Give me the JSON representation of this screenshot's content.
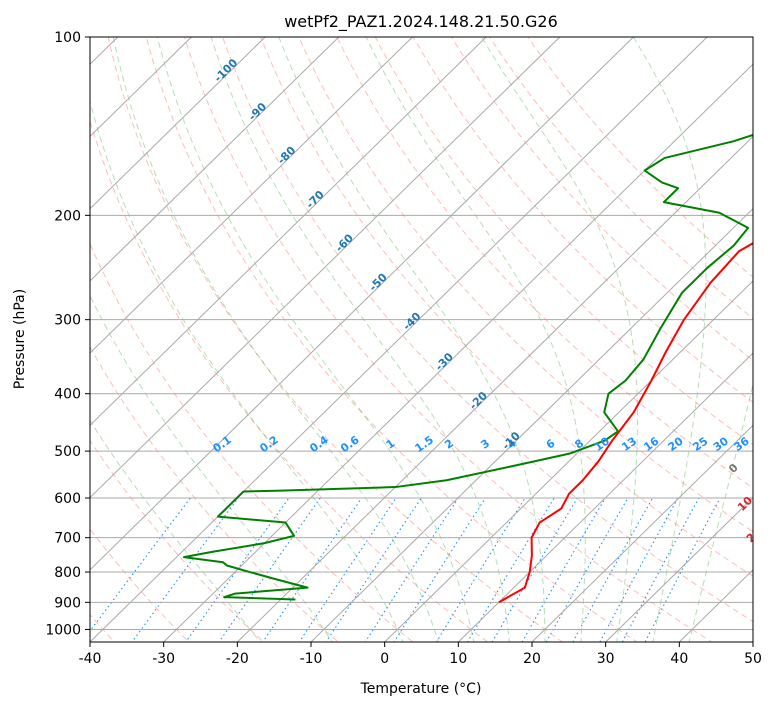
{
  "chart_data": {
    "type": "line",
    "title": "wetPf2_PAZ1.2024.148.21.50.G26",
    "xlabel": "Temperature (°C)",
    "ylabel": "Pressure (hPa)",
    "xlim": [
      -40,
      50
    ],
    "ylim": [
      1050,
      100
    ],
    "y_scale": "log",
    "x_ticks": [
      -40,
      -30,
      -20,
      -10,
      0,
      10,
      20,
      30,
      40,
      50
    ],
    "y_ticks": [
      1000,
      900,
      800,
      700,
      600,
      500,
      400,
      300,
      200,
      100
    ],
    "grid": true,
    "colors": {
      "temperature": "#ff0000",
      "dewpoint": "#008000",
      "isotherm": "#a9a9a9",
      "dry_adiabat": "#fa8072",
      "moist_adiabat": "#2ca02c",
      "mixing_ratio": "#1e90ff",
      "isobar": "#a9a9a9",
      "dry_label": "#1f77b4",
      "wet_label": "#d62728"
    },
    "series": [
      {
        "key": "temperature",
        "points": [
          [
            10,
            900
          ],
          [
            11.5,
            850
          ],
          [
            10,
            800
          ],
          [
            8,
            750
          ],
          [
            5.5,
            700
          ],
          [
            4.5,
            660
          ],
          [
            5.5,
            625
          ],
          [
            4.5,
            590
          ],
          [
            4.5,
            560
          ],
          [
            4,
            520
          ],
          [
            3,
            480
          ],
          [
            2,
            430
          ],
          [
            0,
            380
          ],
          [
            -2,
            340
          ],
          [
            -4,
            300
          ],
          [
            -5.5,
            260
          ],
          [
            -6,
            230
          ],
          [
            -4,
            212
          ],
          [
            0,
            203
          ],
          [
            8,
            190
          ],
          [
            14,
            170
          ],
          [
            19,
            150
          ],
          [
            24,
            130
          ],
          [
            27,
            118
          ],
          [
            28,
            110
          ],
          [
            28.5,
            100
          ]
        ]
      },
      {
        "key": "dewpoint",
        "points": [
          [
            -18,
            890
          ],
          [
            -28,
            882
          ],
          [
            -27,
            870
          ],
          [
            -18,
            850
          ],
          [
            -24,
            820
          ],
          [
            -28,
            800
          ],
          [
            -32,
            780
          ],
          [
            -33,
            770
          ],
          [
            -39,
            755
          ],
          [
            -36,
            740
          ],
          [
            -30,
            715
          ],
          [
            -27,
            695
          ],
          [
            -30,
            660
          ],
          [
            -40,
            645
          ],
          [
            -40,
            585
          ],
          [
            -35,
            583
          ],
          [
            -20,
            575
          ],
          [
            -14,
            560
          ],
          [
            -7,
            530
          ],
          [
            -1,
            505
          ],
          [
            2,
            480
          ],
          [
            2.5,
            463
          ],
          [
            -2,
            430
          ],
          [
            -4,
            400
          ],
          [
            -3.5,
            380
          ],
          [
            -4,
            350
          ],
          [
            -6,
            310
          ],
          [
            -8,
            270
          ],
          [
            -8,
            245
          ],
          [
            -7.5,
            225
          ],
          [
            -8,
            210
          ],
          [
            -14,
            198
          ],
          [
            -23,
            190
          ],
          [
            -23,
            180
          ],
          [
            -26,
            176
          ],
          [
            -30,
            168
          ],
          [
            -29,
            160
          ],
          [
            -22,
            150
          ],
          [
            -17,
            140
          ],
          [
            -14,
            130
          ],
          [
            -10,
            118
          ],
          [
            -6,
            110
          ],
          [
            -1.5,
            100
          ]
        ]
      }
    ],
    "isotherms": [
      -140,
      -130,
      -120,
      -110,
      -100,
      -90,
      -80,
      -70,
      -60,
      -50,
      -40,
      -30,
      -20,
      -10,
      0,
      10,
      20,
      30,
      40,
      50
    ],
    "dry_adiabats_C": [
      -100,
      -90,
      -80,
      -70,
      -60,
      -50,
      -40,
      -30,
      -20,
      -10,
      0,
      10,
      20,
      30,
      40,
      50,
      60,
      70,
      80,
      90,
      100,
      110,
      120,
      130
    ],
    "moist_adiabats_C": [
      -20,
      -10,
      0,
      5,
      10,
      15,
      20,
      25,
      30,
      35,
      40
    ],
    "mixing_ratio_lines": [
      0.1,
      0.2,
      0.4,
      0.6,
      1,
      1.5,
      2,
      3,
      4,
      6,
      8,
      10,
      13,
      16,
      20,
      25,
      30,
      36
    ],
    "dry_adiabat_labels": [
      {
        "text": "-100",
        "T": -100,
        "p": 115
      },
      {
        "text": "-90",
        "T": -90,
        "p": 135
      },
      {
        "text": "-80",
        "T": -80,
        "p": 160
      },
      {
        "text": "-70",
        "T": -70,
        "p": 190
      },
      {
        "text": "-60",
        "T": -60,
        "p": 225
      },
      {
        "text": "-50",
        "T": -50,
        "p": 262
      },
      {
        "text": "-40",
        "T": -40,
        "p": 305
      },
      {
        "text": "-30",
        "T": -30,
        "p": 357
      },
      {
        "text": "-20",
        "T": -20,
        "p": 415
      },
      {
        "text": "-10",
        "T": -10,
        "p": 485
      }
    ],
    "moist_adiabat_labels": [
      {
        "text": "0",
        "T": 24,
        "p": 540,
        "cls": "wet0-lbl"
      },
      {
        "text": "10",
        "T": 30.5,
        "p": 620,
        "cls": "wet-lbl"
      },
      {
        "text": "20",
        "T": 36,
        "p": 700,
        "cls": "wet-lbl"
      },
      {
        "text": "30",
        "T": 41,
        "p": 775,
        "cls": "wet-lbl"
      },
      {
        "text": "40",
        "T": 47,
        "p": 865,
        "cls": "wet-lbl"
      }
    ]
  }
}
